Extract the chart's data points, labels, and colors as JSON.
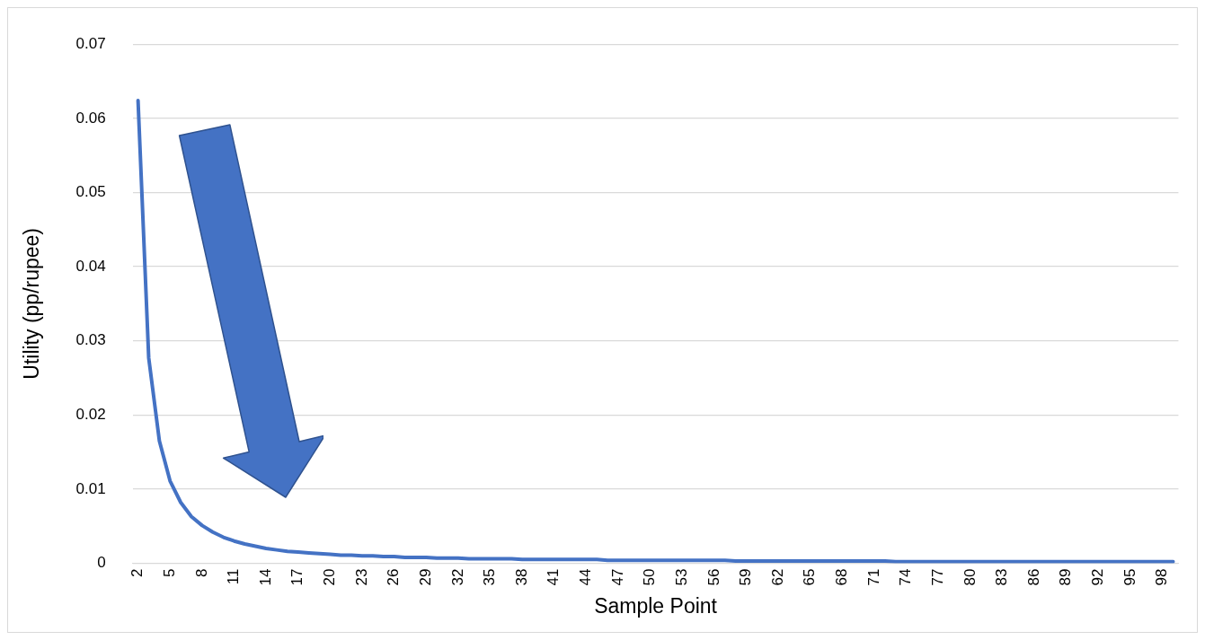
{
  "chart_data": {
    "type": "line",
    "xlabel": "Sample Point",
    "ylabel": "Utility (pp/rupee)",
    "categories": [
      "2",
      null,
      null,
      "5",
      null,
      null,
      "8",
      null,
      null,
      "11",
      null,
      null,
      "14",
      null,
      null,
      "17",
      null,
      null,
      "20",
      null,
      null,
      "23",
      null,
      null,
      "26",
      null,
      null,
      "29",
      null,
      null,
      "32",
      null,
      null,
      "35",
      null,
      null,
      "38",
      null,
      null,
      "41",
      null,
      null,
      "44",
      null,
      null,
      "47",
      null,
      null,
      "50",
      null,
      null,
      "53",
      null,
      null,
      "56",
      null,
      null,
      "59",
      null,
      null,
      "62",
      null,
      null,
      "65",
      null,
      null,
      "68",
      null,
      null,
      "71",
      null,
      null,
      "74",
      null,
      null,
      "77",
      null,
      null,
      "80",
      null,
      null,
      "83",
      null,
      null,
      "86",
      null,
      null,
      "89",
      null,
      null,
      "92",
      null,
      null,
      "95",
      null,
      null,
      "98",
      null
    ],
    "series": [
      {
        "color": "#4472c4",
        "values": [
          0.0624,
          0.0277,
          0.0165,
          0.0111,
          0.0082,
          0.0063,
          0.0051,
          0.0042,
          0.0035,
          0.003,
          0.0026,
          0.0023,
          0.002,
          0.0018,
          0.0016,
          0.0015,
          0.0014,
          0.0013,
          0.0012,
          0.0011,
          0.0011,
          0.001,
          0.001,
          0.0009,
          0.0009,
          0.0008,
          0.0008,
          0.0008,
          0.0007,
          0.0007,
          0.0007,
          0.0006,
          0.0006,
          0.0006,
          0.0006,
          0.0006,
          0.0005,
          0.0005,
          0.0005,
          0.0005,
          0.0005,
          0.0005,
          0.0005,
          0.0005,
          0.0004,
          0.0004,
          0.0004,
          0.0004,
          0.0004,
          0.0004,
          0.0004,
          0.0004,
          0.0004,
          0.0004,
          0.0004,
          0.0004,
          0.0003,
          0.0003,
          0.0003,
          0.0003,
          0.0003,
          0.0003,
          0.0003,
          0.0003,
          0.0003,
          0.0003,
          0.0003,
          0.0003,
          0.0003,
          0.0003,
          0.0003,
          0.0002,
          0.0002,
          0.0002,
          0.0002,
          0.0002,
          0.0002,
          0.0002,
          0.0002,
          0.0002,
          0.0002,
          0.0002,
          0.0002,
          0.0002,
          0.0002,
          0.0002,
          0.0002,
          0.0002,
          0.0002,
          0.0002,
          0.0002,
          0.0002,
          0.0002,
          0.0002,
          0.0002,
          0.0002,
          0.0002,
          0.0002
        ]
      }
    ],
    "ylim": [
      0,
      0.07
    ],
    "yticks": [
      0,
      0.01,
      0.02,
      0.03,
      0.04,
      0.05,
      0.06,
      0.07
    ],
    "grid": "y",
    "legend": false,
    "marker": "none",
    "line_style": "solid"
  }
}
